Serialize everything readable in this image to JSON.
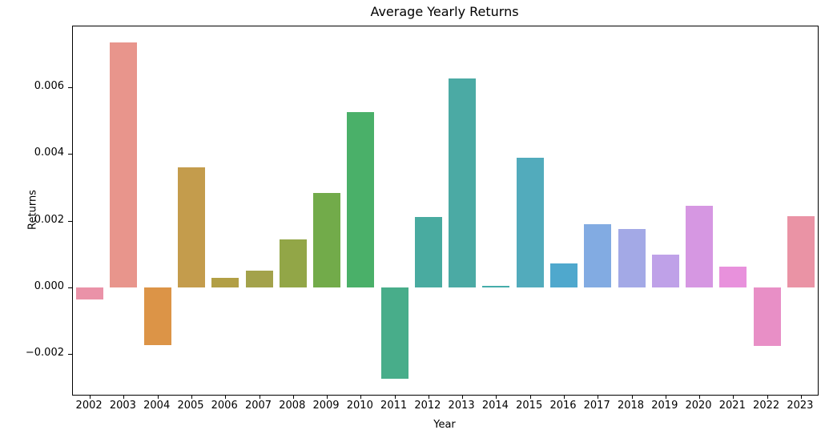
{
  "chart_data": {
    "type": "bar",
    "title": "Average Yearly Returns",
    "xlabel": "Year",
    "ylabel": "Returns",
    "categories": [
      "2002",
      "2003",
      "2004",
      "2005",
      "2006",
      "2007",
      "2008",
      "2009",
      "2010",
      "2011",
      "2012",
      "2013",
      "2014",
      "2015",
      "2016",
      "2017",
      "2018",
      "2019",
      "2020",
      "2021",
      "2022",
      "2023"
    ],
    "values": [
      -0.00037,
      0.00734,
      -0.00173,
      0.00361,
      0.00028,
      0.00051,
      0.00143,
      0.00284,
      0.00526,
      -0.00273,
      0.00211,
      0.00627,
      5e-05,
      0.00388,
      0.00072,
      0.0019,
      0.00176,
      0.00098,
      0.00245,
      0.00062,
      -0.00176,
      0.00214
    ],
    "bar_colors": [
      "#ea92a8",
      "#e8958c",
      "#dc9447",
      "#c49c4c",
      "#b29f45",
      "#a3a24b",
      "#92a647",
      "#72ab4a",
      "#4ab069",
      "#48ad8a",
      "#49aba0",
      "#4baaa4",
      "#45adaa",
      "#52abbc",
      "#4fa8cd",
      "#82abe2",
      "#a3a9e6",
      "#bfa1e8",
      "#d697e2",
      "#e891dc",
      "#e88fc6",
      "#ea93a5"
    ],
    "yticks": [
      0.006,
      0.004,
      0.002,
      0.0,
      -0.002
    ],
    "ytick_labels": [
      "0.006",
      "0.004",
      "0.002",
      "0.000",
      "−0.002"
    ],
    "ylim": [
      -0.00322,
      0.00782
    ],
    "grid": false,
    "legend_position": "none",
    "axis_color": "#000000"
  }
}
